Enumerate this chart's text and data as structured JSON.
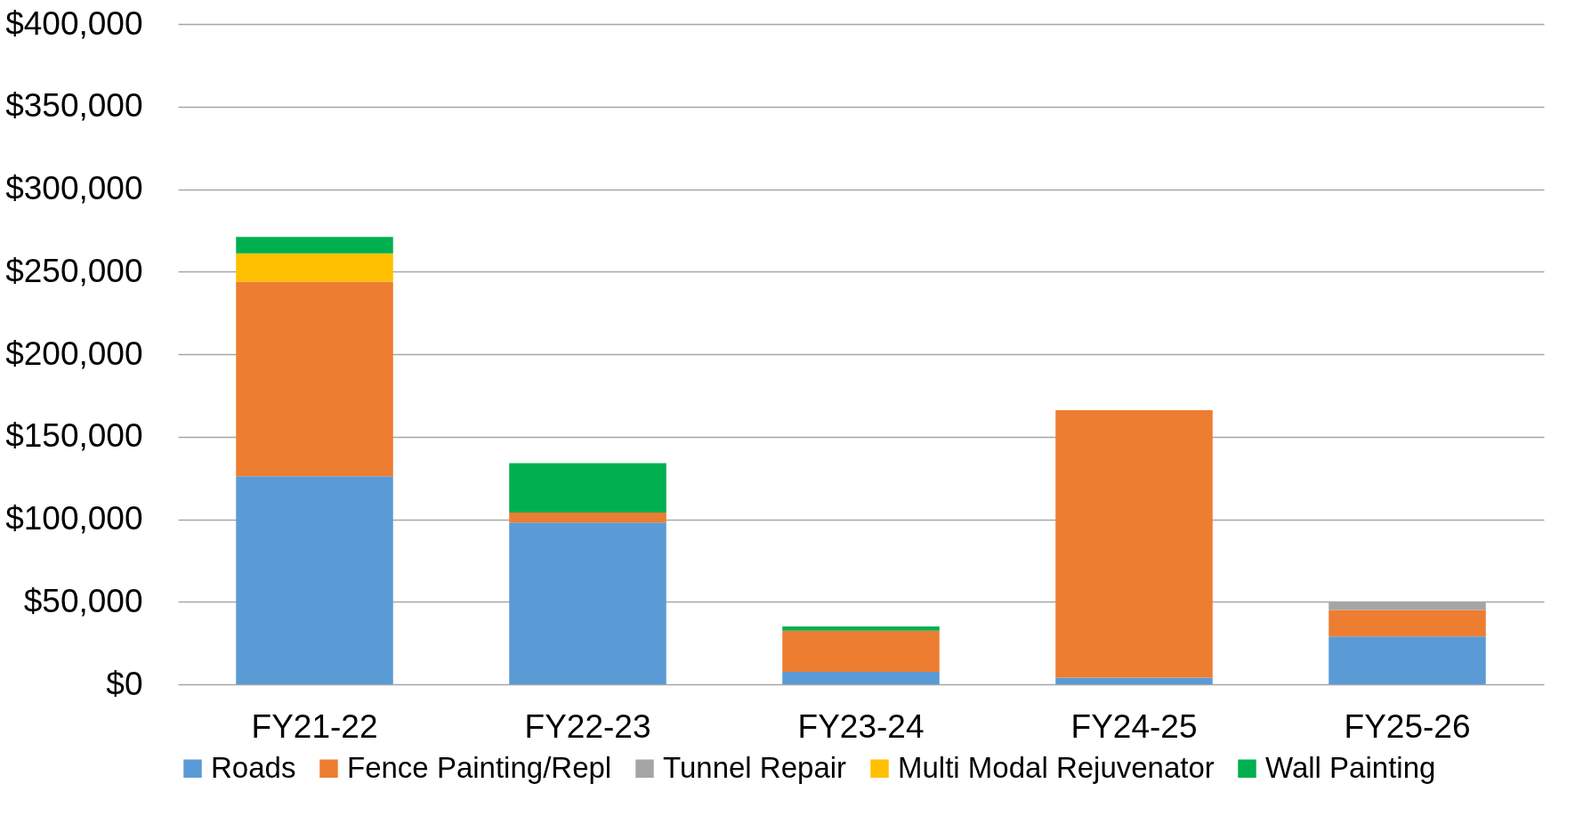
{
  "chart_data": {
    "type": "bar",
    "stacked": true,
    "categories": [
      "FY21-22",
      "FY22-23",
      "FY23-24",
      "FY24-25",
      "FY25-26"
    ],
    "series": [
      {
        "name": "Roads",
        "color": "#5b9bd5",
        "values": [
          126000,
          98000,
          7500,
          4000,
          29000
        ]
      },
      {
        "name": "Fence Painting/Repl",
        "color": "#ed7d31",
        "values": [
          118000,
          6000,
          25000,
          162000,
          16000
        ]
      },
      {
        "name": "Tunnel Repair",
        "color": "#a5a5a5",
        "values": [
          0,
          0,
          0,
          0,
          5000
        ]
      },
      {
        "name": "Multi Modal Rejuvenator",
        "color": "#ffc000",
        "values": [
          17000,
          0,
          0,
          0,
          0
        ]
      },
      {
        "name": "Wall Painting",
        "color": "#00b050",
        "values": [
          10000,
          30000,
          2500,
          0,
          0
        ]
      }
    ],
    "ylim": [
      0,
      400000
    ],
    "yticks": [
      {
        "value": 0,
        "label": "$0"
      },
      {
        "value": 50000,
        "label": "$50,000"
      },
      {
        "value": 100000,
        "label": "$100,000"
      },
      {
        "value": 150000,
        "label": "$150,000"
      },
      {
        "value": 200000,
        "label": "$200,000"
      },
      {
        "value": 250000,
        "label": "$250,000"
      },
      {
        "value": 300000,
        "label": "$300,000"
      },
      {
        "value": 350000,
        "label": "$350,000"
      },
      {
        "value": 400000,
        "label": "$400,000"
      }
    ],
    "grid": "y",
    "legend": "bottom"
  }
}
